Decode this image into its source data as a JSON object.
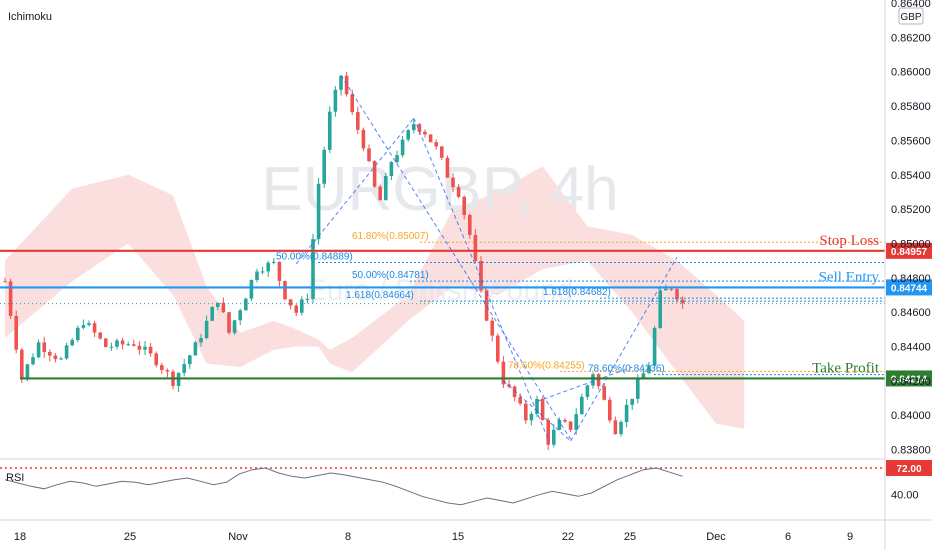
{
  "watermark": {
    "symbol": "EURGBP, 4h",
    "name": "Euro / British Pound"
  },
  "indicator_label": "Ichimoku",
  "rsi_label": "RSI",
  "currency_label": "GBP",
  "colors": {
    "up": "#26a69a",
    "down": "#ef5350",
    "cloud": "#f8c9c9",
    "stop": "#e53935",
    "entry": "#2196f3",
    "take": "#2e7d32",
    "fib_gold": "#f5a623",
    "fib_blue": "#1e88e5"
  },
  "levels": [
    {
      "name": "Stop Loss",
      "value": 0.84957,
      "tag": "0.84957",
      "color": "#e53935"
    },
    {
      "name": "Sell Entry",
      "value": 0.84744,
      "tag": "0.84744",
      "color": "#2196f3"
    },
    {
      "name": "Take Profit",
      "value": 0.84214,
      "tag": "0.84214",
      "color": "#2e7d32"
    }
  ],
  "fib_labels": [
    {
      "text": "61.80%(0.85007)",
      "value": 0.85007,
      "color": "#f5a623"
    },
    {
      "text": "50.00%(0.84889)",
      "value": 0.84889,
      "color": "#1e88e5"
    },
    {
      "text": "50.00%(0.84781)",
      "value": 0.84781,
      "color": "#1e88e5"
    },
    {
      "text": "1.618(0.84664)",
      "value": 0.84664,
      "color": "#1e88e5"
    },
    {
      "text": "1.618(0.84682)",
      "value": 0.84682,
      "color": "#1e88e5"
    },
    {
      "text": "78.60%(0.84255)",
      "value": 0.84255,
      "color": "#f5a623"
    },
    {
      "text": "78.60%(0.84236)",
      "value": 0.84236,
      "color": "#1e88e5"
    }
  ],
  "rsi": {
    "level_tag": "72.00",
    "level": 72,
    "tick": "40.00"
  },
  "chart_data": {
    "type": "candlestick",
    "x_ticks": [
      "18",
      "25",
      "Nov",
      "8",
      "15",
      "22",
      "25",
      "Dec",
      "6",
      "9"
    ],
    "y_ticks": [
      "0.86400",
      "0.86200",
      "0.86000",
      "0.85800",
      "0.85600",
      "0.85400",
      "0.85200",
      "0.85000",
      "0.84800",
      "0.84600",
      "0.84400",
      "0.84200",
      "0.84000",
      "0.83800"
    ],
    "ylim": [
      0.8372,
      0.864
    ],
    "price_path": [
      [
        0,
        0.8478
      ],
      [
        3,
        0.8422
      ],
      [
        6,
        0.8442
      ],
      [
        10,
        0.8432
      ],
      [
        14,
        0.8455
      ],
      [
        18,
        0.844
      ],
      [
        23,
        0.8442
      ],
      [
        27,
        0.8432
      ],
      [
        30,
        0.842
      ],
      [
        34,
        0.844
      ],
      [
        38,
        0.8468
      ],
      [
        40,
        0.8448
      ],
      [
        43,
        0.847
      ],
      [
        45,
        0.8486
      ],
      [
        48,
        0.8488
      ],
      [
        50,
        0.847
      ],
      [
        52,
        0.846
      ],
      [
        54,
        0.847
      ],
      [
        56,
        0.8535
      ],
      [
        58,
        0.8575
      ],
      [
        60,
        0.8598
      ],
      [
        62,
        0.8575
      ],
      [
        64,
        0.8558
      ],
      [
        66,
        0.8532
      ],
      [
        67,
        0.8525
      ],
      [
        69,
        0.8548
      ],
      [
        71,
        0.8558
      ],
      [
        73,
        0.857
      ],
      [
        75,
        0.8565
      ],
      [
        77,
        0.8555
      ],
      [
        79,
        0.854
      ],
      [
        81,
        0.853
      ],
      [
        83,
        0.8505
      ],
      [
        85,
        0.847
      ],
      [
        87,
        0.8445
      ],
      [
        89,
        0.842
      ],
      [
        91,
        0.841
      ],
      [
        93,
        0.8398
      ],
      [
        95,
        0.8408
      ],
      [
        97,
        0.8385
      ],
      [
        99,
        0.8395
      ],
      [
        101,
        0.8393
      ],
      [
        103,
        0.841
      ],
      [
        105,
        0.8425
      ],
      [
        107,
        0.8408
      ],
      [
        109,
        0.8392
      ],
      [
        111,
        0.8405
      ],
      [
        113,
        0.8418
      ],
      [
        115,
        0.843
      ],
      [
        117,
        0.847
      ],
      [
        119,
        0.8475
      ],
      [
        121,
        0.8465
      ]
    ],
    "cloud": [
      [
        0,
        0.8445,
        0.849
      ],
      [
        12,
        0.8478,
        0.8532
      ],
      [
        22,
        0.85,
        0.854
      ],
      [
        30,
        0.847,
        0.8528
      ],
      [
        36,
        0.843,
        0.8475
      ],
      [
        42,
        0.8428,
        0.8448
      ],
      [
        48,
        0.8438,
        0.8455
      ],
      [
        52,
        0.844,
        0.845
      ],
      [
        56,
        0.844,
        0.8444
      ],
      [
        58,
        0.843,
        0.8438
      ],
      [
        62,
        0.8425,
        0.8445
      ],
      [
        72,
        0.8455,
        0.847
      ],
      [
        80,
        0.8475,
        0.852
      ],
      [
        88,
        0.847,
        0.853
      ],
      [
        96,
        0.8485,
        0.8545
      ],
      [
        104,
        0.849,
        0.851
      ],
      [
        112,
        0.846,
        0.8505
      ],
      [
        120,
        0.8425,
        0.849
      ],
      [
        127,
        0.8395,
        0.847
      ],
      [
        132,
        0.8392,
        0.8455
      ]
    ],
    "rsi_values": [
      58,
      54,
      50,
      47,
      52,
      56,
      54,
      50,
      53,
      56,
      55,
      52,
      55,
      58,
      60,
      56,
      52,
      55,
      65,
      70,
      72,
      66,
      62,
      60,
      63,
      66,
      64,
      61,
      58,
      55,
      50,
      44,
      38,
      34,
      30,
      28,
      32,
      36,
      33,
      30,
      35,
      40,
      44,
      41,
      38,
      42,
      50,
      58,
      64,
      70,
      72,
      67,
      62
    ]
  }
}
